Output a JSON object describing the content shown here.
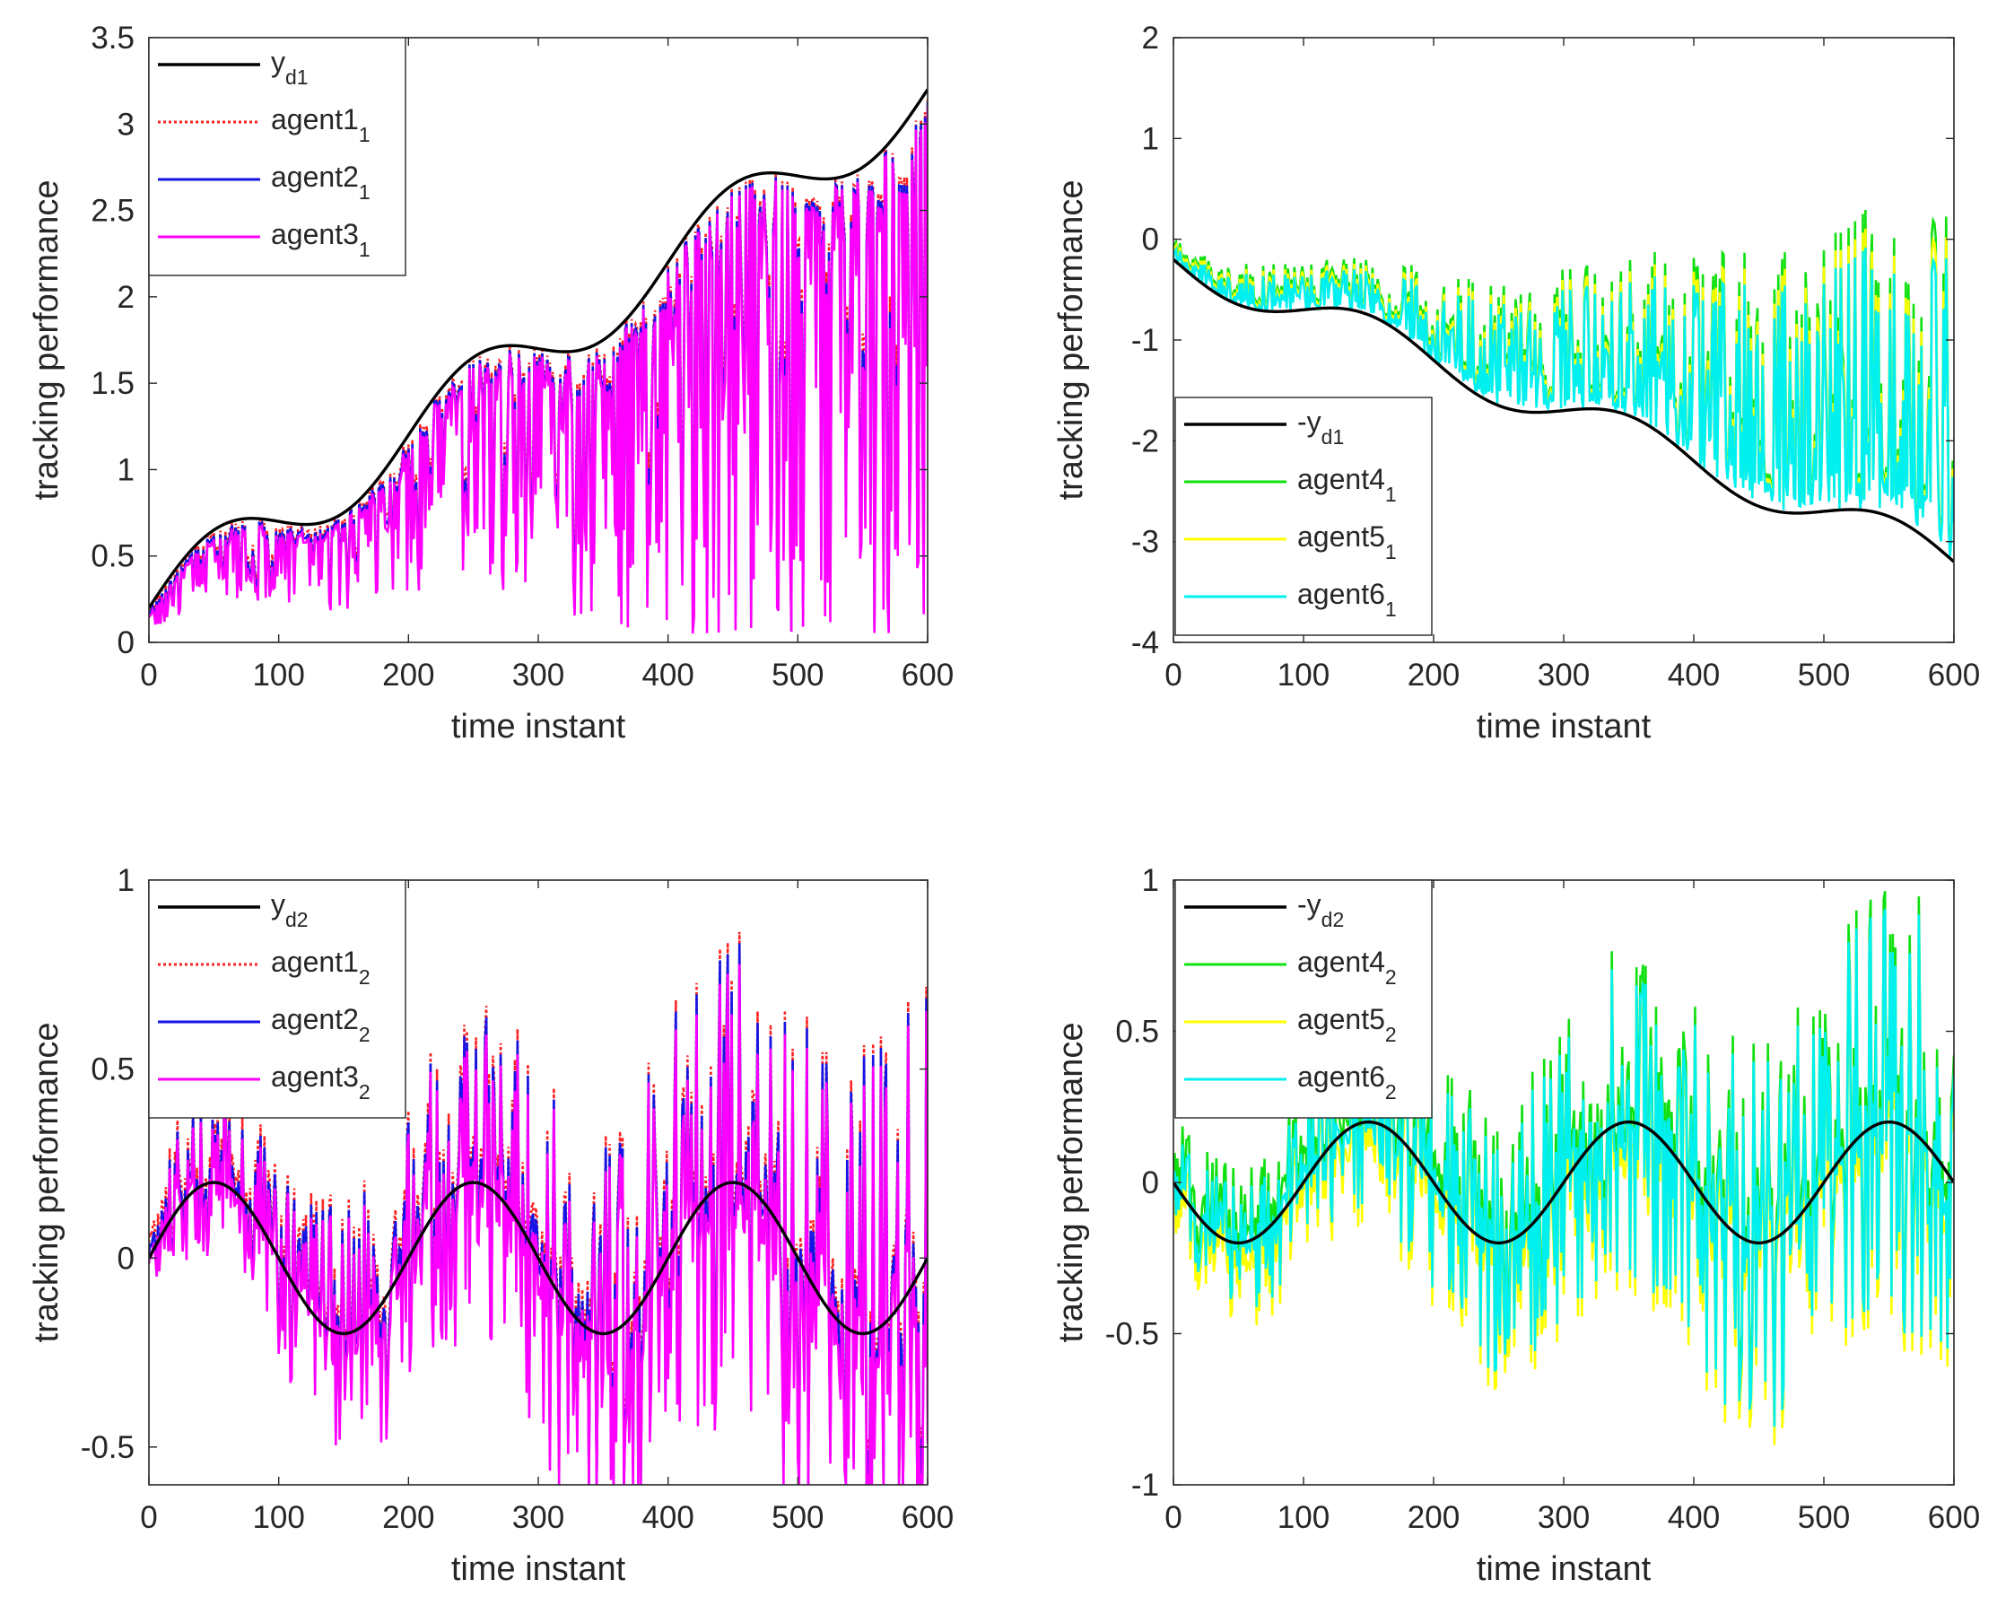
{
  "chart_data": [
    {
      "type": "line",
      "xlabel": "time instant",
      "ylabel": "tracking performance",
      "xlim": [
        0,
        600
      ],
      "ylim": [
        0,
        3.5
      ],
      "xticks": [
        0,
        100,
        200,
        300,
        400,
        500,
        600
      ],
      "yticks": [
        0,
        0.5,
        1,
        1.5,
        2,
        2.5,
        3,
        3.5
      ],
      "yticklabels": [
        "0",
        "0.5",
        "1",
        "1.5",
        "2",
        "2.5",
        "3",
        "3.5"
      ],
      "legend_position": "top-left",
      "reference": {
        "amp": 0.2,
        "phase": 0.0314159,
        "trend": 0.005,
        "offset": 0.2,
        "sign": 1
      },
      "series": [
        {
          "name": "y",
          "sub": "d1",
          "color": "#000000",
          "style": "solid",
          "role": "reference"
        },
        {
          "name": "agent1",
          "sub": "1",
          "color": "#ff2020",
          "style": "dotted",
          "role": "agent"
        },
        {
          "name": "agent2",
          "sub": "1",
          "color": "#1414e6",
          "style": "solid",
          "role": "agent"
        },
        {
          "name": "agent3",
          "sub": "1",
          "color": "#ff00ff",
          "style": "solid",
          "role": "agent"
        }
      ]
    },
    {
      "type": "line",
      "xlabel": "time instant",
      "ylabel": "tracking performance",
      "xlim": [
        0,
        600
      ],
      "ylim": [
        -4,
        2
      ],
      "xticks": [
        0,
        100,
        200,
        300,
        400,
        500,
        600
      ],
      "yticks": [
        -4,
        -3,
        -2,
        -1,
        0,
        1,
        2
      ],
      "yticklabels": [
        "-4",
        "-3",
        "-2",
        "-1",
        "0",
        "1",
        "2"
      ],
      "legend_position": "bottom-left",
      "reference": {
        "amp": 0.2,
        "phase": 0.0314159,
        "trend": 0.005,
        "offset": 0.2,
        "sign": -1
      },
      "series": [
        {
          "name": "-y",
          "sub": "d1",
          "color": "#000000",
          "style": "solid",
          "role": "reference"
        },
        {
          "name": "agent4",
          "sub": "1",
          "color": "#10e010",
          "style": "solid",
          "role": "agent"
        },
        {
          "name": "agent5",
          "sub": "1",
          "color": "#ffff00",
          "style": "solid",
          "role": "agent"
        },
        {
          "name": "agent6",
          "sub": "1",
          "color": "#00f0f0",
          "style": "solid",
          "role": "agent"
        }
      ]
    },
    {
      "type": "line",
      "xlabel": "time instant",
      "ylabel": "tracking performance",
      "xlim": [
        0,
        600
      ],
      "ylim": [
        -0.6,
        1
      ],
      "xticks": [
        0,
        100,
        200,
        300,
        400,
        500,
        600
      ],
      "yticks": [
        -0.5,
        0,
        0.5,
        1
      ],
      "yticklabels": [
        "-0.5",
        "0",
        "0.5",
        "1"
      ],
      "legend_position": "top-left",
      "reference": {
        "amp": 0.2,
        "phase": 0.0314159,
        "trend": 0,
        "offset": 0,
        "sign": 1
      },
      "series": [
        {
          "name": "y",
          "sub": "d2",
          "color": "#000000",
          "style": "solid",
          "role": "reference"
        },
        {
          "name": "agent1",
          "sub": "2",
          "color": "#ff2020",
          "style": "dotted",
          "role": "agent"
        },
        {
          "name": "agent2",
          "sub": "2",
          "color": "#1414e6",
          "style": "solid",
          "role": "agent"
        },
        {
          "name": "agent3",
          "sub": "2",
          "color": "#ff00ff",
          "style": "solid",
          "role": "agent"
        }
      ]
    },
    {
      "type": "line",
      "xlabel": "time instant",
      "ylabel": "tracking performance",
      "xlim": [
        0,
        600
      ],
      "ylim": [
        -1,
        1
      ],
      "xticks": [
        0,
        100,
        200,
        300,
        400,
        500,
        600
      ],
      "yticks": [
        -1,
        -0.5,
        0,
        0.5,
        1
      ],
      "yticklabels": [
        "-1",
        "-0.5",
        "0",
        "0.5",
        "1"
      ],
      "legend_position": "top-left",
      "reference": {
        "amp": 0.2,
        "phase": 0.0314159,
        "trend": 0,
        "offset": 0,
        "sign": -1
      },
      "series": [
        {
          "name": "-y",
          "sub": "d2",
          "color": "#000000",
          "style": "solid",
          "role": "reference"
        },
        {
          "name": "agent4",
          "sub": "2",
          "color": "#10e010",
          "style": "solid",
          "role": "agent"
        },
        {
          "name": "agent5",
          "sub": "2",
          "color": "#ffff00",
          "style": "solid",
          "role": "agent"
        },
        {
          "name": "agent6",
          "sub": "2",
          "color": "#00f0f0",
          "style": "solid",
          "role": "agent"
        }
      ]
    }
  ]
}
